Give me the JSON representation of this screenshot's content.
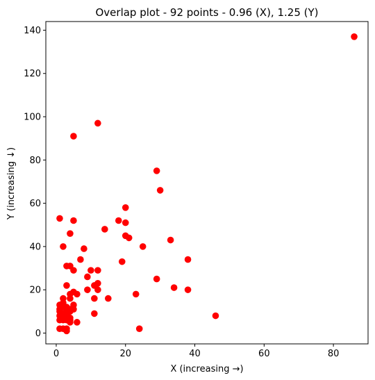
{
  "chart_data": {
    "type": "scatter",
    "title": "Overlap plot - 92 points - 0.96 (X), 1.25 (Y)",
    "xlabel": "X (increasing →)",
    "ylabel": "Y (increasing ↓)",
    "xlim": [
      -3,
      90
    ],
    "ylim": [
      -5,
      144
    ],
    "xticks": [
      0,
      20,
      40,
      60,
      80
    ],
    "yticks": [
      0,
      20,
      40,
      60,
      80,
      100,
      120,
      140
    ],
    "grid": false,
    "marker_color": "#ff0000",
    "points": [
      [
        86,
        137
      ],
      [
        12,
        97
      ],
      [
        5,
        91
      ],
      [
        29,
        75
      ],
      [
        30,
        66
      ],
      [
        20,
        58
      ],
      [
        1,
        53
      ],
      [
        5,
        52
      ],
      [
        18,
        52
      ],
      [
        20,
        51
      ],
      [
        14,
        48
      ],
      [
        4,
        46
      ],
      [
        20,
        45
      ],
      [
        21,
        44
      ],
      [
        33,
        43
      ],
      [
        2,
        40
      ],
      [
        8,
        39
      ],
      [
        25,
        40
      ],
      [
        7,
        34
      ],
      [
        19,
        33
      ],
      [
        38,
        34
      ],
      [
        3,
        31
      ],
      [
        4,
        31
      ],
      [
        5,
        29
      ],
      [
        10,
        29
      ],
      [
        12,
        29
      ],
      [
        9,
        26
      ],
      [
        29,
        25
      ],
      [
        3,
        22
      ],
      [
        11,
        22
      ],
      [
        12,
        23
      ],
      [
        34,
        21
      ],
      [
        9,
        20
      ],
      [
        12,
        20
      ],
      [
        38,
        20
      ],
      [
        4,
        18
      ],
      [
        5,
        19
      ],
      [
        6,
        18
      ],
      [
        23,
        18
      ],
      [
        2,
        16
      ],
      [
        4,
        16
      ],
      [
        11,
        16
      ],
      [
        15,
        16
      ],
      [
        1,
        13
      ],
      [
        2,
        14
      ],
      [
        3,
        12
      ],
      [
        5,
        13
      ],
      [
        1,
        11
      ],
      [
        2,
        12
      ],
      [
        4,
        11
      ],
      [
        5,
        11
      ],
      [
        1,
        10
      ],
      [
        2,
        9
      ],
      [
        3,
        10
      ],
      [
        4,
        10
      ],
      [
        11,
        9
      ],
      [
        46,
        8
      ],
      [
        1,
        8
      ],
      [
        2,
        7
      ],
      [
        3,
        8
      ],
      [
        4,
        7
      ],
      [
        1,
        6
      ],
      [
        2,
        6
      ],
      [
        3,
        6
      ],
      [
        4,
        6
      ],
      [
        4,
        5
      ],
      [
        6,
        5
      ],
      [
        1,
        2
      ],
      [
        2,
        2
      ],
      [
        3,
        2
      ],
      [
        24,
        2
      ],
      [
        3,
        1
      ]
    ]
  }
}
